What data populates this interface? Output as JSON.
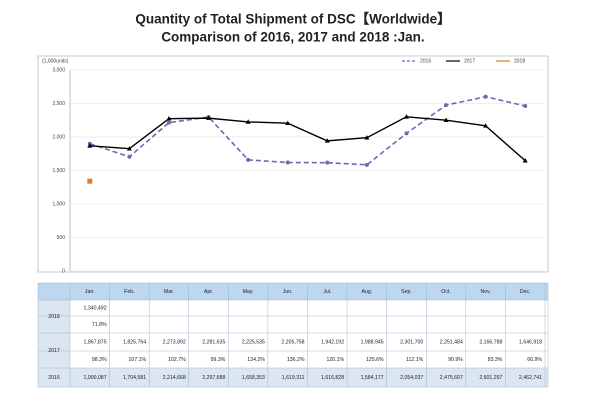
{
  "chart_data": {
    "type": "line",
    "title": "Quantity of Total Shipment of DSC【Worldwide】",
    "subtitle": "Comparison of 2016, 2017 and 2018 :Jan.",
    "y_label": "(1,000units)",
    "categories": [
      "Jan.",
      "Feb.",
      "Mar.",
      "Apr.",
      "May.",
      "Jun.",
      "Jul.",
      "Aug.",
      "Sep.",
      "Oct.",
      "Nov.",
      "Dec."
    ],
    "ylim": [
      0,
      3000
    ],
    "yticks": [
      0,
      500,
      {
        "value": 1000,
        "label": "1,000"
      },
      {
        "value": 1500,
        "label": "1,500"
      },
      {
        "value": 2000,
        "label": "2,000"
      },
      {
        "value": 2500,
        "label": "2,500"
      },
      {
        "value": 3000,
        "label": "3,000"
      }
    ],
    "grid": true,
    "legend": "top-right",
    "series": [
      {
        "name": "2016",
        "color": "#6a6ab4",
        "dashed": true,
        "values": [
          1900.087,
          1704.581,
          2214.668,
          2297.688,
          1658.353,
          1619.311,
          1616.828,
          1584.177,
          2054.037,
          2475.607,
          2601.297,
          2462.741
        ],
        "value_labels": [
          "1,900,087",
          "1,704,581",
          "2,214,668",
          "2,297,688",
          "1,658,353",
          "1,619,311",
          "1,616,828",
          "1,584,177",
          "2,054,037",
          "2,475,607",
          "2,601,297",
          "2,462,741"
        ]
      },
      {
        "name": "2017",
        "color": "#000000",
        "dashed": false,
        "values": [
          1867.875,
          1825.764,
          2273.892,
          2281.635,
          2225.535,
          2205.758,
          1942.192,
          1988.945,
          2301.7,
          2251.484,
          2166.788,
          1646.918
        ],
        "value_labels": [
          "1,867,875",
          "1,825,764",
          "2,273,892",
          "2,281,635",
          "2,225,535",
          "2,205,758",
          "1,942,192",
          "1,988,945",
          "2,301,700",
          "2,251,484",
          "2,166,788",
          "1,646,918"
        ],
        "ratio_labels": [
          "98.3%",
          "107.1%",
          "102.7%",
          "99.3%",
          "134.2%",
          "136.2%",
          "120.1%",
          "125.6%",
          "112.1%",
          "90.9%",
          "83.3%",
          "66.9%"
        ]
      },
      {
        "name": "2018",
        "color": "#e07b27",
        "dashed": false,
        "values": [
          1340.492,
          null,
          null,
          null,
          null,
          null,
          null,
          null,
          null,
          null,
          null,
          null
        ],
        "value_labels": [
          "1,340,492",
          null,
          null,
          null,
          null,
          null,
          null,
          null,
          null,
          null,
          null,
          null
        ],
        "ratio_labels": [
          "71.8%",
          null,
          null,
          null,
          null,
          null,
          null,
          null,
          null,
          null,
          null,
          null
        ]
      }
    ]
  }
}
